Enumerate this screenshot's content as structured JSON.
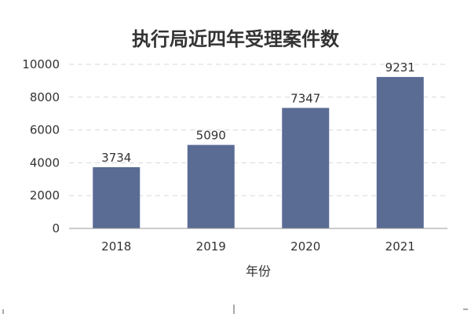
{
  "chart_data": {
    "type": "bar",
    "title": "执行局近四年受理案件数",
    "xlabel": "年份",
    "ylabel": "",
    "categories": [
      "2018",
      "2019",
      "2020",
      "2021"
    ],
    "values": [
      3734,
      5090,
      7347,
      9231
    ],
    "ylim": [
      0,
      10000
    ],
    "yticks": [
      "0",
      "2000",
      "4000",
      "6000",
      "8000",
      "10000"
    ],
    "bar_color": "#5a6b94",
    "grid": true,
    "legend": "none"
  }
}
